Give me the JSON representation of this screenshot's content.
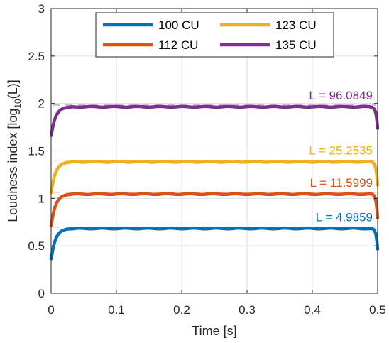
{
  "chart_data": {
    "type": "line",
    "xlabel": "Time [s]",
    "ylabel": "Loudness index [log",
    "ylabel_sub": "10",
    "ylabel_tail": "(L)]",
    "xlim": [
      0,
      0.5
    ],
    "ylim": [
      0,
      3
    ],
    "xticks": [
      0,
      0.1,
      0.2,
      0.3,
      0.4,
      0.5
    ],
    "xtick_labels": [
      "0",
      "0.1",
      "0.2",
      "0.3",
      "0.4",
      "0.5"
    ],
    "yticks": [
      0,
      0.5,
      1,
      1.5,
      2,
      2.5,
      3
    ],
    "ytick_labels": [
      "0",
      "0.5",
      "1",
      "1.5",
      "2",
      "2.5",
      "3"
    ],
    "grid": true,
    "legend_position": "top",
    "series": [
      {
        "name": "100 CU",
        "color": "#0072BD",
        "start": 0.35,
        "level": 0.683,
        "end": 0.45,
        "dash_level": 0.698,
        "annotation": "L = 4.9859"
      },
      {
        "name": "112 CU",
        "color": "#D95319",
        "start": 0.7,
        "level": 1.045,
        "end": 0.78,
        "dash_level": 1.064,
        "annotation": "L = 11.5999"
      },
      {
        "name": "123 CU",
        "color": "#EDB120",
        "start": 1.05,
        "level": 1.385,
        "end": 1.13,
        "dash_level": 1.402,
        "annotation": "L = 25.2535"
      },
      {
        "name": "135 CU",
        "color": "#7E2F8E",
        "start": 1.65,
        "level": 1.965,
        "end": 1.73,
        "dash_level": 1.983,
        "annotation": "L = 96.0849"
      }
    ]
  }
}
